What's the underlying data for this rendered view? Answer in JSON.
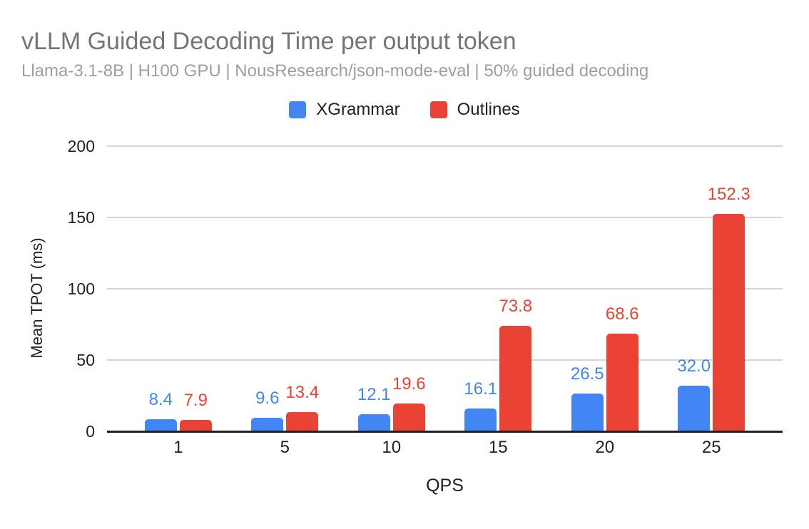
{
  "title": "vLLM Guided Decoding Time per output token",
  "subtitle": "Llama-3.1-8B | H100 GPU | NousResearch/json-mode-eval | 50% guided decoding",
  "colors": {
    "xgrammar_blue": "#4285F4",
    "outlines_red": "#EA4335",
    "title_gray": "#757575",
    "subtitle_gray": "#9E9E9E",
    "gridline_gray": "#D5D5D5",
    "axis_dark": "#212121"
  },
  "legend": {
    "items": [
      {
        "label": "XGrammar",
        "color": "#4285F4"
      },
      {
        "label": "Outlines",
        "color": "#EA4335"
      }
    ]
  },
  "chart_data": {
    "type": "bar",
    "title": "vLLM Guided Decoding Time per output token",
    "subtitle": "Llama-3.1-8B | H100 GPU | NousResearch/json-mode-eval | 50% guided decoding",
    "categories": [
      "1",
      "5",
      "10",
      "15",
      "20",
      "25"
    ],
    "series": [
      {
        "name": "XGrammar",
        "color": "#4285F4",
        "values": [
          8.4,
          9.6,
          12.1,
          16.1,
          26.5,
          32.0
        ]
      },
      {
        "name": "Outlines",
        "color": "#EA4335",
        "values": [
          7.9,
          13.4,
          19.6,
          73.8,
          68.6,
          152.3
        ]
      }
    ],
    "xlabel": "QPS",
    "ylabel": "Mean TPOT (ms)",
    "ylim": [
      0,
      200
    ],
    "yticks": [
      0,
      50,
      100,
      150,
      200
    ],
    "grid": true,
    "legend_position": "top",
    "data_labels": true,
    "data_label_decimals": 1
  }
}
